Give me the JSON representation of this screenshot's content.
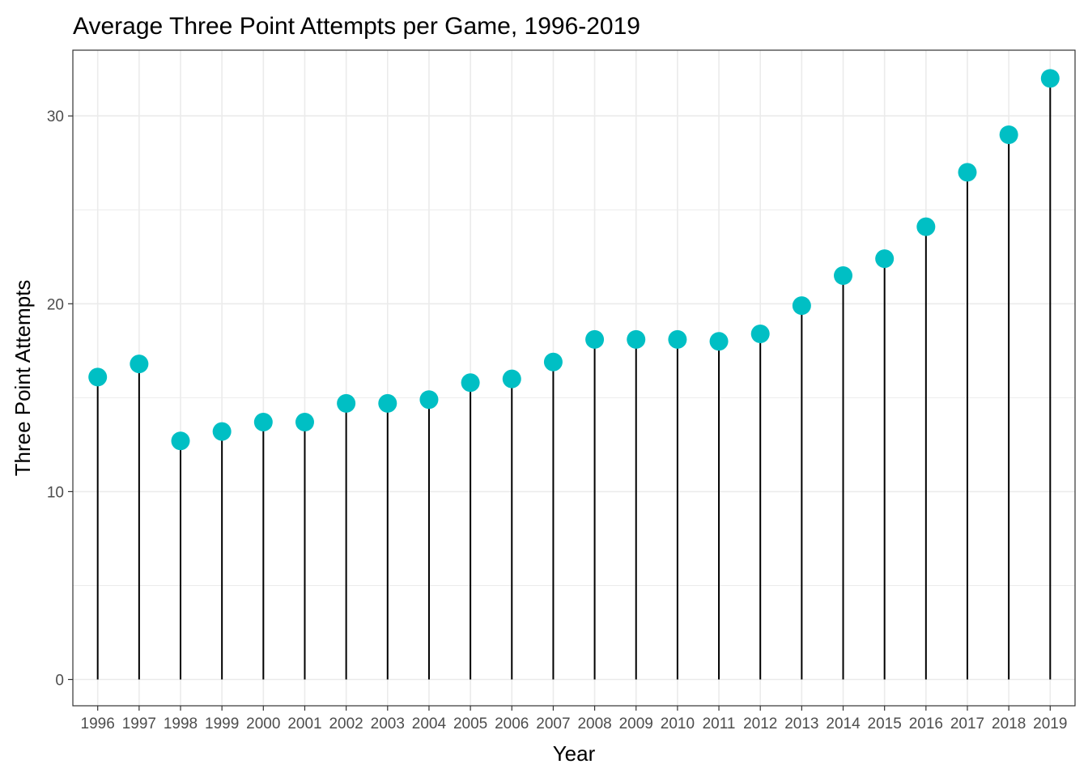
{
  "chart_data": {
    "type": "lollipop",
    "title": "Average Three Point Attempts per Game, 1996-2019",
    "xlabel": "Year",
    "ylabel": "Three Point Attempts",
    "categories": [
      "1996",
      "1997",
      "1998",
      "1999",
      "2000",
      "2001",
      "2002",
      "2003",
      "2004",
      "2005",
      "2006",
      "2007",
      "2008",
      "2009",
      "2010",
      "2011",
      "2012",
      "2013",
      "2014",
      "2015",
      "2016",
      "2017",
      "2018",
      "2019"
    ],
    "values": [
      16.1,
      16.8,
      12.7,
      13.2,
      13.7,
      13.7,
      14.7,
      14.7,
      14.9,
      15.8,
      16.0,
      16.9,
      18.1,
      18.1,
      18.1,
      18.0,
      18.4,
      19.9,
      21.5,
      22.4,
      24.1,
      27.0,
      29.0,
      32.0
    ],
    "ylim": [
      -1.4,
      33.5
    ],
    "yticks": [
      0,
      10,
      20,
      30
    ],
    "grid": true,
    "legend": "none",
    "colors": {
      "point": "#00BFC4",
      "stem": "#000000",
      "grid": "#EBEBEB",
      "panel_border": "#333333"
    }
  }
}
